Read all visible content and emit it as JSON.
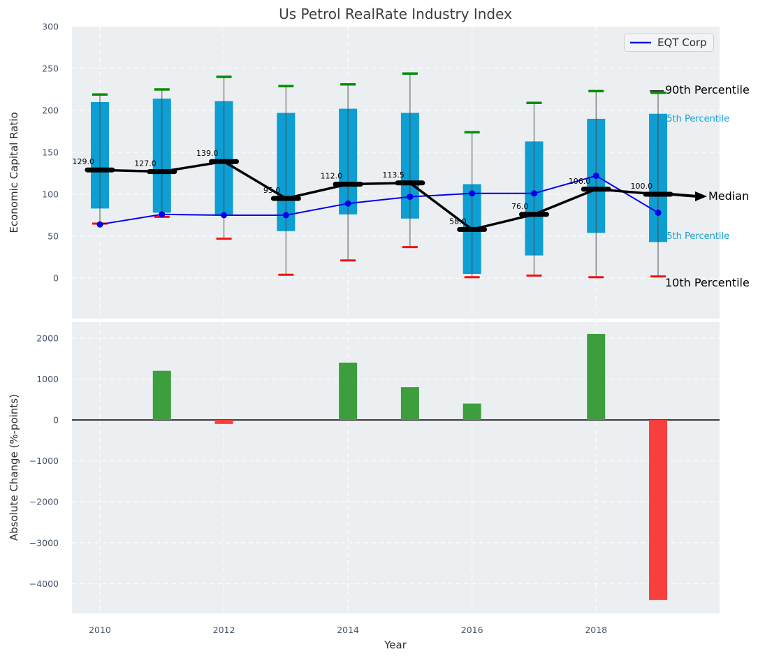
{
  "figure": {
    "title": "Us Petrol RealRate Industry Index",
    "legend": {
      "label": "EQT Corp"
    }
  },
  "colors": {
    "plot_bg": "#eceff1",
    "grid": "#ffffff",
    "box_fill": "#0d9ed3",
    "whisker": "#4a4a4a",
    "cap_high": "#058e05",
    "cap_low": "#f80f0f",
    "median": "#000000",
    "eqt_line": "#0000ee",
    "bar_positive": "#3c9e3c",
    "bar_negative": "#f93e3e",
    "tick_label": "#43536a",
    "axis_label": "#2f2f2f",
    "title": "#3d3d3d",
    "annotation_black": "#000000",
    "annotation_teal": "#18a0d0",
    "legend_bg": "#f3f4f6",
    "legend_border": "#cfcfcf"
  },
  "chart_data": [
    {
      "type": "boxplot",
      "title": "Us Petrol RealRate Industry Index",
      "ylabel": "Economic Capital Ratio",
      "ylim": [
        -48,
        298
      ],
      "yticks": [
        0,
        50,
        100,
        150,
        200,
        250,
        300
      ],
      "grid": true,
      "legend_position": "upper right",
      "x": [
        2010,
        2011,
        2012,
        2013,
        2014,
        2015,
        2016,
        2017,
        2018,
        2019
      ],
      "series": [
        {
          "name": "90th Percentile",
          "values": [
            219,
            225,
            240,
            229,
            231,
            244,
            174,
            209,
            223,
            221
          ]
        },
        {
          "name": "75th Percentile",
          "values": [
            210,
            214,
            211,
            197,
            202,
            197,
            112,
            163,
            190,
            196
          ]
        },
        {
          "name": "Median",
          "values": [
            129,
            127,
            139,
            95,
            112,
            113.5,
            58,
            76,
            106,
            100
          ]
        },
        {
          "name": "25th Percentile",
          "values": [
            83,
            78,
            75,
            56,
            76,
            71,
            5,
            27,
            54,
            43
          ]
        },
        {
          "name": "10th Percentile",
          "values": [
            65,
            73,
            47,
            4,
            21,
            37,
            1,
            3,
            1,
            2
          ]
        },
        {
          "name": "EQT Corp",
          "values": [
            64,
            76,
            75,
            75,
            89,
            97,
            101,
            101,
            122,
            78
          ]
        }
      ],
      "median_labels": [
        "129.0",
        "127.0",
        "139.0",
        "95.0",
        "112.0",
        "113.5",
        "58.0",
        "76.0",
        "106.0",
        "100.0"
      ],
      "annotations": [
        "90th Percentile",
        "75th Percentile",
        "Median",
        "25th Percentile",
        "10th Percentile"
      ]
    },
    {
      "type": "bar",
      "ylabel": "Absolute Change (%-points)",
      "xlabel": "Year",
      "categories": [
        2010,
        2011,
        2012,
        2013,
        2014,
        2015,
        2016,
        2017,
        2018,
        2019
      ],
      "values": [
        null,
        1200,
        -100,
        0,
        1400,
        800,
        400,
        0,
        2100,
        -4400
      ],
      "yticks": [
        2000,
        1000,
        0,
        -1000,
        -2000,
        -3000,
        -4000
      ],
      "xticks": [
        2010,
        2012,
        2014,
        2016,
        2018
      ],
      "ylim": [
        -4725,
        2425
      ],
      "grid": true
    }
  ]
}
